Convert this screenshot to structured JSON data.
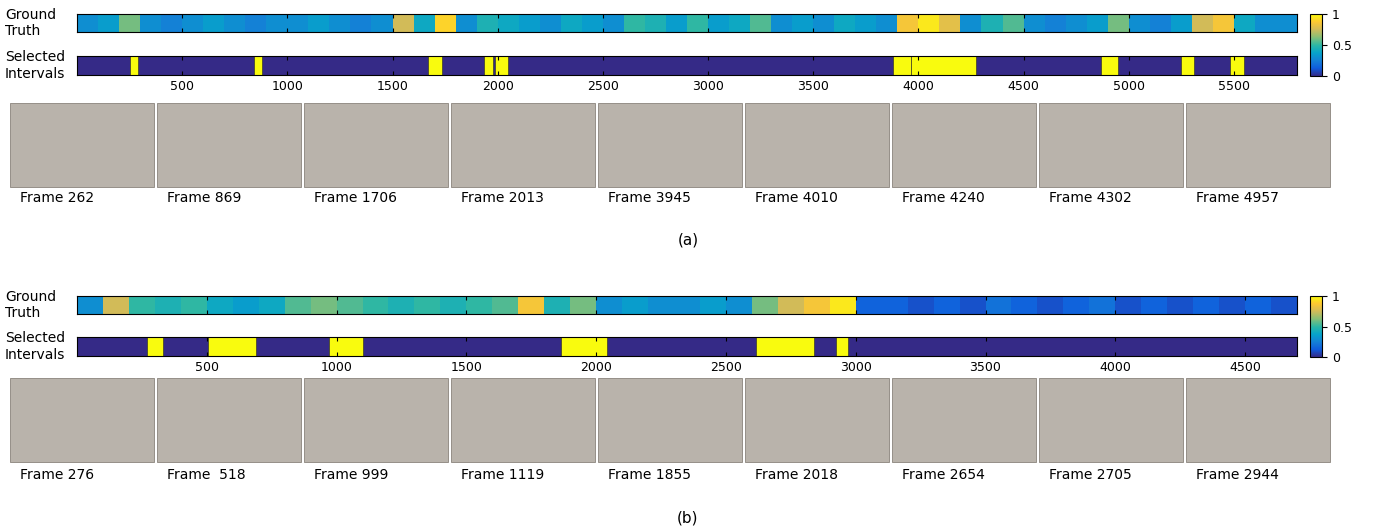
{
  "chart_data": [
    {
      "type": "heatmap",
      "label": "(a)",
      "rows": [
        "Ground Truth",
        "Selected Intervals"
      ],
      "xlim": [
        0,
        5800
      ],
      "xticks": [
        500,
        1000,
        1500,
        2000,
        2500,
        3000,
        3500,
        4000,
        4500,
        5000,
        5500
      ],
      "bins": [
        0,
        100,
        200,
        300,
        400,
        500,
        600,
        700,
        800,
        900,
        1000,
        1100,
        1200,
        1300,
        1400,
        1500,
        1600,
        1700,
        1800,
        1900,
        2000,
        2100,
        2200,
        2300,
        2400,
        2500,
        2600,
        2700,
        2800,
        2900,
        3000,
        3100,
        3200,
        3300,
        3400,
        3500,
        3600,
        3700,
        3800,
        3900,
        4000,
        4100,
        4200,
        4300,
        4400,
        4500,
        4600,
        4700,
        4800,
        4900,
        5000,
        5100,
        5200,
        5300,
        5400,
        5500,
        5600,
        5700,
        5800
      ],
      "ground_truth": [
        0.3,
        0.35,
        0.6,
        0.3,
        0.25,
        0.3,
        0.35,
        0.3,
        0.25,
        0.3,
        0.3,
        0.35,
        0.3,
        0.25,
        0.3,
        0.75,
        0.4,
        0.9,
        0.3,
        0.45,
        0.4,
        0.35,
        0.3,
        0.4,
        0.35,
        0.3,
        0.5,
        0.45,
        0.35,
        0.5,
        0.35,
        0.4,
        0.55,
        0.3,
        0.35,
        0.3,
        0.4,
        0.35,
        0.3,
        0.85,
        0.95,
        0.8,
        0.3,
        0.45,
        0.55,
        0.3,
        0.25,
        0.3,
        0.35,
        0.6,
        0.3,
        0.25,
        0.35,
        0.75,
        0.85,
        0.4,
        0.3,
        0.3
      ],
      "selected_intervals": [
        [
          250,
          290
        ],
        [
          840,
          880
        ],
        [
          1670,
          1735
        ],
        [
          1935,
          1980
        ],
        [
          1985,
          2050
        ],
        [
          3880,
          3965
        ],
        [
          3965,
          4275
        ],
        [
          4870,
          4950
        ],
        [
          5250,
          5310
        ],
        [
          5480,
          5550
        ]
      ],
      "colorbar": {
        "range": [
          0,
          1
        ],
        "ticks": [
          0,
          0.5,
          1
        ]
      },
      "frames": [
        "Frame 262",
        "Frame 869",
        "Frame 1706",
        "Frame 2013",
        "Frame 3945",
        "Frame 4010",
        "Frame 4240",
        "Frame 4302",
        "Frame 4957"
      ]
    },
    {
      "type": "heatmap",
      "label": "(b)",
      "rows": [
        "Ground Truth",
        "Selected Intervals"
      ],
      "xlim": [
        0,
        4700
      ],
      "xticks": [
        500,
        1000,
        1500,
        2000,
        2500,
        3000,
        3500,
        4000,
        4500
      ],
      "bins": [
        0,
        100,
        200,
        300,
        400,
        500,
        600,
        700,
        800,
        900,
        1000,
        1100,
        1200,
        1300,
        1400,
        1500,
        1600,
        1700,
        1800,
        1900,
        2000,
        2100,
        2200,
        2300,
        2400,
        2500,
        2600,
        2700,
        2800,
        2900,
        3000,
        3100,
        3200,
        3300,
        3400,
        3500,
        3600,
        3700,
        3800,
        3900,
        4000,
        4100,
        4200,
        4300,
        4400,
        4500,
        4600,
        4700
      ],
      "ground_truth": [
        0.3,
        0.75,
        0.5,
        0.45,
        0.5,
        0.4,
        0.35,
        0.4,
        0.55,
        0.6,
        0.55,
        0.5,
        0.45,
        0.5,
        0.45,
        0.5,
        0.55,
        0.85,
        0.45,
        0.6,
        0.3,
        0.35,
        0.3,
        0.3,
        0.35,
        0.3,
        0.6,
        0.75,
        0.85,
        0.95,
        0.15,
        0.15,
        0.1,
        0.15,
        0.1,
        0.2,
        0.15,
        0.1,
        0.15,
        0.2,
        0.1,
        0.15,
        0.1,
        0.15,
        0.1,
        0.15,
        0.1
      ],
      "selected_intervals": [
        [
          270,
          330
        ],
        [
          505,
          690
        ],
        [
          970,
          1100
        ],
        [
          1865,
          2040
        ],
        [
          2615,
          2840
        ],
        [
          2925,
          2970
        ]
      ],
      "colorbar": {
        "range": [
          0,
          1
        ],
        "ticks": [
          0,
          0.5,
          1
        ]
      },
      "frames": [
        "Frame 276",
        "Frame  518",
        "Frame 999",
        "Frame 1119",
        "Frame 1855",
        "Frame 2018",
        "Frame 2654",
        "Frame 2705",
        "Frame 2944"
      ]
    }
  ]
}
